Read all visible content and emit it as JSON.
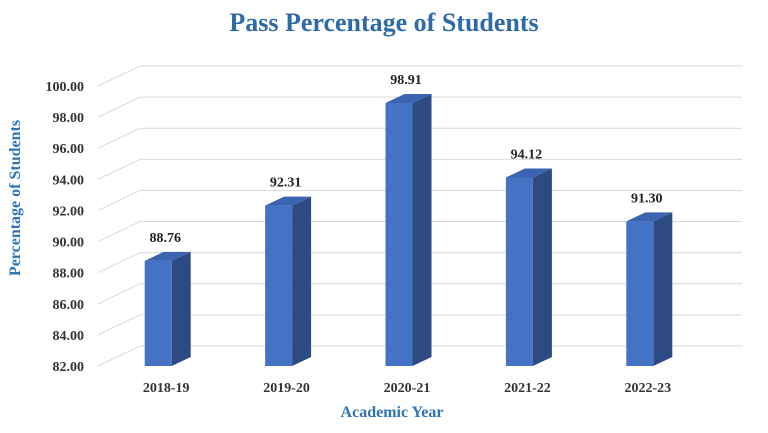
{
  "chart_data": {
    "type": "bar",
    "title": "Pass Percentage of Students",
    "xlabel": "Academic Year",
    "ylabel": "Percentage of Students",
    "categories": [
      "2018-19",
      "2019-20",
      "2020-21",
      "2021-22",
      "2022-23"
    ],
    "values": [
      88.76,
      92.31,
      98.91,
      94.12,
      91.3
    ],
    "value_labels": [
      "88.76",
      "92.31",
      "98.91",
      "94.12",
      "91.30"
    ],
    "yticks": [
      "82.00",
      "84.00",
      "86.00",
      "88.00",
      "90.00",
      "92.00",
      "94.00",
      "96.00",
      "98.00",
      "100.00"
    ],
    "ylim": [
      82,
      100
    ],
    "grid": true,
    "legend": "none",
    "style": "3d-column",
    "colors": {
      "bar_front": "#4472c4",
      "bar_side": "#2e4a82",
      "bar_top": "#3a63b0",
      "title": "#2e6aa8",
      "axis_title": "#2e75b6"
    }
  }
}
